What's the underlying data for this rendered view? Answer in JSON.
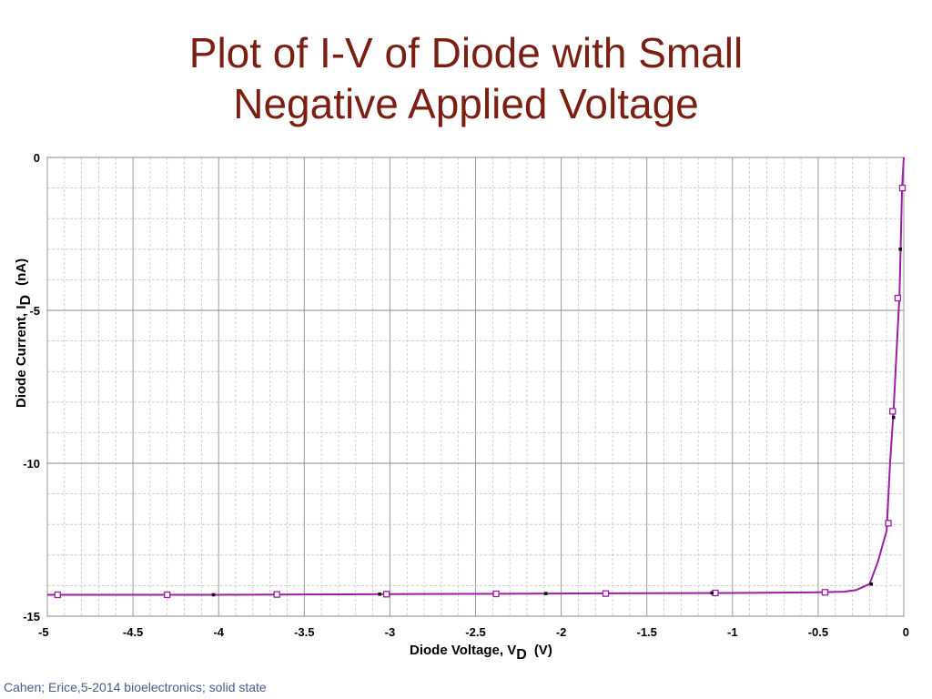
{
  "slide": {
    "title_line1": "Plot of I-V of Diode with Small",
    "title_line2": "Negative Applied Voltage",
    "footer": "Cahen; Erice,5-2014 bioelectronics; solid state"
  },
  "colors": {
    "title": "#7b1f12",
    "series": "#9b1fa3",
    "grid": "#888888",
    "footer": "#4a5a8c"
  },
  "chart_data": {
    "type": "line",
    "title": "",
    "xlabel": "Diode Voltage, V",
    "xlabel_sub": "D",
    "xlabel_unit": "(V)",
    "ylabel": "Diode Current, I",
    "ylabel_sub": "D",
    "ylabel_unit": "(nA)",
    "xlim": [
      -5,
      0
    ],
    "ylim": [
      -15,
      0
    ],
    "x_ticks": [
      -5,
      -4.5,
      -4,
      -3.5,
      -3,
      -2.5,
      -2,
      -1.5,
      -1,
      -0.5,
      0
    ],
    "x_tick_labels": [
      "-5",
      "-4.5",
      "-4",
      "-3.5",
      "-3",
      "-2.5",
      "-2",
      "-1.5",
      "-1",
      "-0.5",
      "0"
    ],
    "y_ticks": [
      0,
      -5,
      -10,
      -15
    ],
    "y_tick_labels": [
      "0",
      "-5",
      "-10",
      "-15"
    ],
    "grid": true,
    "series": [
      {
        "x": [
          -5,
          -4.5,
          -4,
          -3.5,
          -3,
          -2.5,
          -2,
          -1.5,
          -1,
          -0.5,
          -0.35,
          -0.28,
          -0.2,
          -0.15,
          -0.1,
          -0.08,
          -0.06,
          -0.04,
          -0.025,
          -0.01,
          0
        ],
        "y": [
          -14.3,
          -14.3,
          -14.3,
          -14.29,
          -14.28,
          -14.27,
          -14.26,
          -14.25,
          -14.24,
          -14.22,
          -14.2,
          -14.15,
          -13.95,
          -13.2,
          -12.2,
          -10.0,
          -8.3,
          -6.1,
          -4.5,
          -1.0,
          0
        ]
      }
    ],
    "markers": {
      "open_square": {
        "x": [
          -4.94,
          -4.3,
          -3.66,
          -3.02,
          -2.38,
          -1.74,
          -1.1,
          -0.46,
          -0.09,
          -0.065,
          -0.035,
          -0.008
        ],
        "y": [
          -14.3,
          -14.3,
          -14.29,
          -14.28,
          -14.27,
          -14.26,
          -14.24,
          -14.22,
          -11.96,
          -8.3,
          -4.6,
          -1.0
        ]
      },
      "dot": {
        "x": [
          -4.03,
          -3.06,
          -2.09,
          -1.12,
          -0.19,
          -0.06,
          -0.02
        ],
        "y": [
          -14.3,
          -14.28,
          -14.26,
          -14.24,
          -13.95,
          -8.5,
          -3.0
        ]
      }
    }
  }
}
